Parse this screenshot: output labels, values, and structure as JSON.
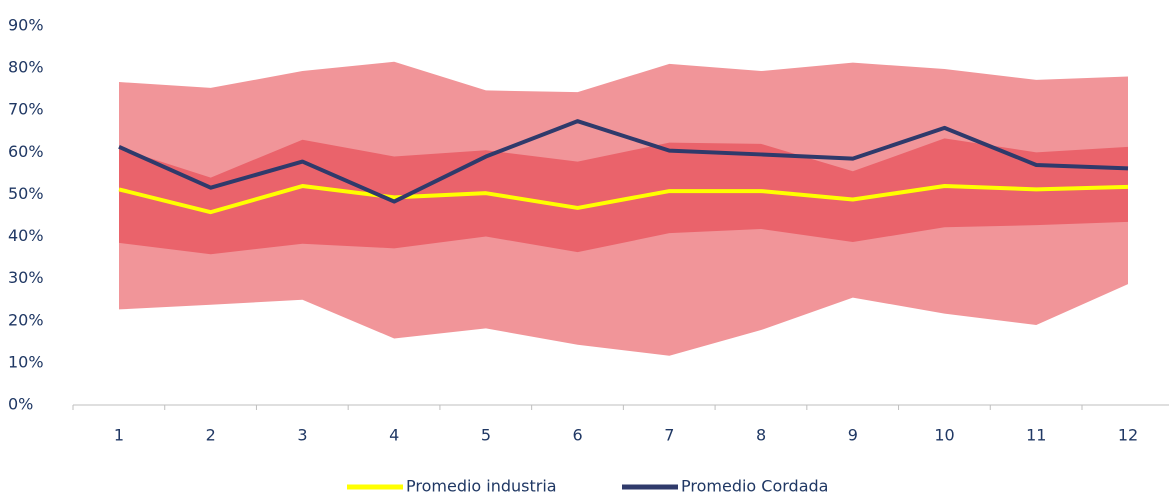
{
  "chart_data": {
    "type": "band-line",
    "categories": [
      "1",
      "2",
      "3",
      "4",
      "5",
      "6",
      "7",
      "8",
      "9",
      "10",
      "11",
      "12"
    ],
    "ylim": [
      0,
      90
    ],
    "yticks": [
      {
        "value": 0,
        "label": "0%"
      },
      {
        "value": 10,
        "label": "10%"
      },
      {
        "value": 20,
        "label": "20%"
      },
      {
        "value": 30,
        "label": "30%"
      },
      {
        "value": 40,
        "label": "40%"
      },
      {
        "value": 50,
        "label": "50%"
      },
      {
        "value": 60,
        "label": "60%"
      },
      {
        "value": 70,
        "label": "70%"
      },
      {
        "value": 80,
        "label": "80%"
      },
      {
        "value": 90,
        "label": "90%"
      }
    ],
    "bands": [
      {
        "color": "#f19599",
        "upper": [
          76.7,
          75.3,
          79.3,
          81.5,
          74.7,
          74.3,
          81,
          79.3,
          81.3,
          79.8,
          77.2,
          78
        ],
        "lower": [
          22.7,
          23.8,
          25,
          15.8,
          18.2,
          14.3,
          11.7,
          17.8,
          25.5,
          21.7,
          19,
          28.7
        ]
      },
      {
        "color": "#ea636b",
        "upper": [
          61,
          54,
          63,
          59,
          60.5,
          57.8,
          62.3,
          62,
          55.5,
          63.3,
          60,
          61.3
        ],
        "lower": [
          38.5,
          35.8,
          38.3,
          37.2,
          40,
          36.3,
          40.8,
          41.8,
          38.7,
          42.2,
          42.7,
          43.5
        ]
      }
    ],
    "series": [
      {
        "name": "Promedio industria",
        "color": "#ffff00",
        "values": [
          51.2,
          45.8,
          52,
          49.3,
          50.3,
          46.8,
          50.8,
          50.8,
          48.8,
          52,
          51.2,
          51.8
        ]
      },
      {
        "name": "Promedio Cordada",
        "color": "#2f3a6b",
        "values": [
          61.3,
          51.6,
          57.8,
          48.3,
          59,
          67.4,
          60.4,
          59.5,
          58.5,
          65.8,
          57,
          56.2
        ]
      }
    ]
  }
}
